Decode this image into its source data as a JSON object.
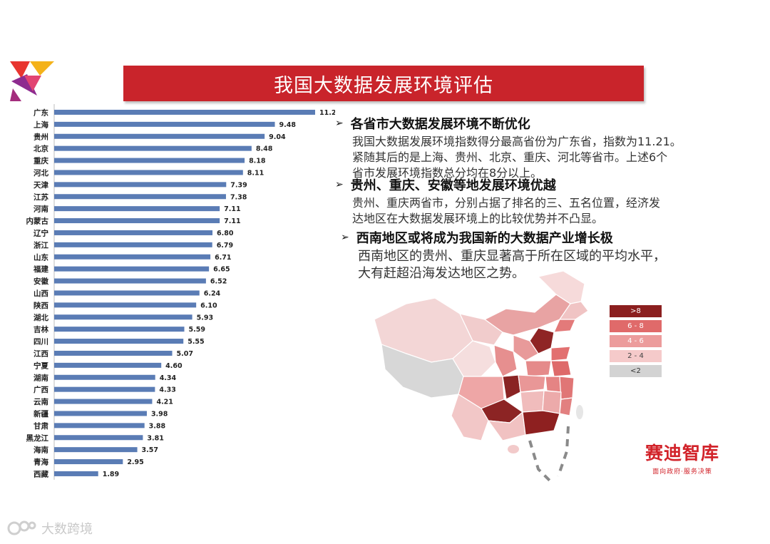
{
  "title": "我国大数据发展环境评估",
  "colors": {
    "bar": "#5a7cb5",
    "title_bg": "#c9242b",
    "brand": "#d2232a",
    "legend": [
      "#8b1f1f",
      "#e06a6a",
      "#ec9c9c",
      "#f5caca",
      "#d3d3d3"
    ]
  },
  "chart_data": {
    "type": "bar",
    "orientation": "horizontal",
    "categories": [
      "广东",
      "上海",
      "贵州",
      "北京",
      "重庆",
      "河北",
      "天津",
      "江苏",
      "河南",
      "内蒙古",
      "辽宁",
      "浙江",
      "山东",
      "福建",
      "安徽",
      "山西",
      "陕西",
      "湖北",
      "吉林",
      "四川",
      "江西",
      "宁夏",
      "湖南",
      "广西",
      "云南",
      "新疆",
      "甘肃",
      "黑龙江",
      "海南",
      "青海",
      "西藏"
    ],
    "values": [
      11.21,
      9.48,
      9.04,
      8.48,
      8.18,
      8.11,
      7.39,
      7.38,
      7.11,
      7.11,
      6.8,
      6.79,
      6.71,
      6.65,
      6.52,
      6.24,
      6.1,
      5.93,
      5.59,
      5.55,
      5.07,
      4.6,
      4.34,
      4.33,
      4.21,
      3.98,
      3.88,
      3.81,
      3.57,
      2.95,
      1.89
    ],
    "xlim": [
      0,
      12
    ],
    "title": "",
    "xlabel": "",
    "ylabel": ""
  },
  "bullets": [
    {
      "head": "各省市大数据发展环境不断优化",
      "lines": [
        "我国大数据发展环境指数得分最高省份为广东省，指数为11.21。",
        "紧随其后的是上海、贵州、北京、重庆、河北等省市。上述6个",
        "省市发展环境指数总分均在8分以上。"
      ]
    },
    {
      "head": "贵州、重庆、安徽等地发展环境优越",
      "lines": [
        "贵州、重庆两省市，分别占据了排名的三、五名位置，经济发",
        "达地区在大数据发展环境上的比较优势并不凸显。"
      ]
    },
    {
      "head": "西南地区或将成为我国新的大数据产业增长极",
      "lines": [
        "西南地区的贵州、重庆显著高于所在区域的平均水平，",
        "大有赶超沿海发达地区之势。"
      ]
    }
  ],
  "arrow_glyph": "➢",
  "legend": [
    ">8",
    "6 - 8",
    "4 - 6",
    "2 - 4",
    "<2"
  ],
  "brand": {
    "name": "赛迪智库",
    "slogan": "面向政府·服务决策"
  },
  "watermark": "大数跨境"
}
